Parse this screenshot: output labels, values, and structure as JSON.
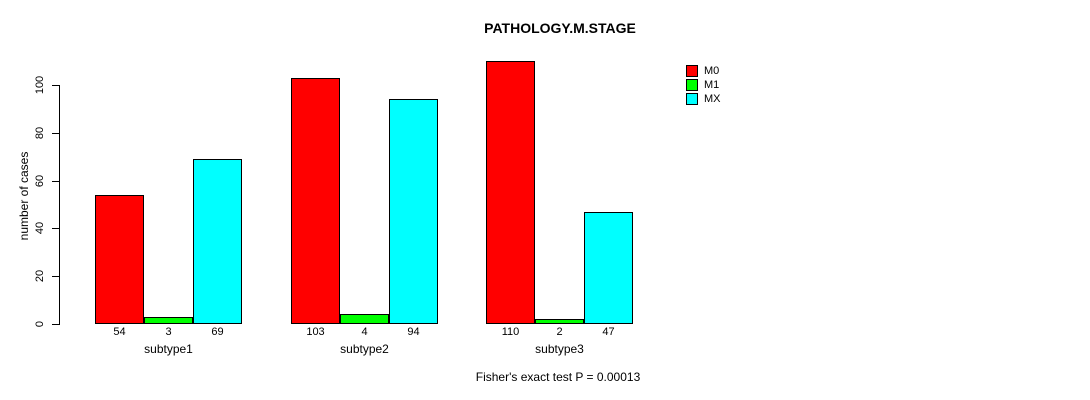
{
  "chart_data": {
    "type": "bar",
    "title": "PATHOLOGY.M.STAGE",
    "ylabel": "number of cases",
    "categories": [
      "subtype1",
      "subtype2",
      "subtype3"
    ],
    "series": [
      {
        "name": "M0",
        "color": "#ff0000",
        "values": [
          54,
          103,
          110
        ]
      },
      {
        "name": "M1",
        "color": "#00ff00",
        "values": [
          3,
          4,
          2
        ]
      },
      {
        "name": "MX",
        "color": "#00ffff",
        "values": [
          69,
          94,
          47
        ]
      }
    ],
    "yticks": [
      0,
      20,
      40,
      60,
      80,
      100
    ],
    "ylim": [
      0,
      100
    ],
    "grid": false,
    "legend_position": "top-right",
    "bar_border_color": "#000000",
    "background_color": "#ffffff",
    "annotation": "Fisher's exact test P = 0.00013"
  }
}
